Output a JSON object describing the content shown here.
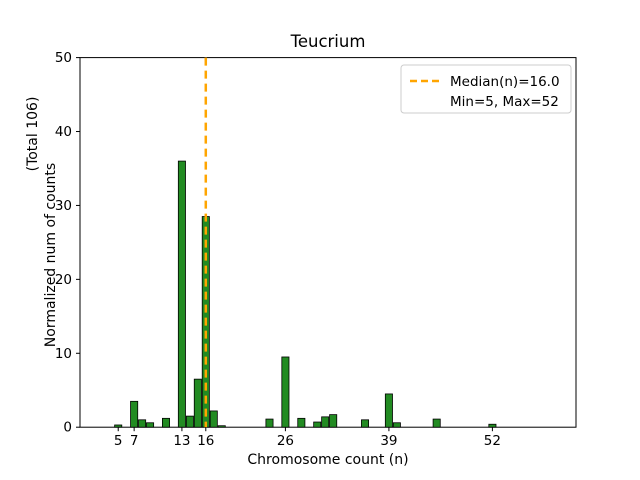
{
  "figure": {
    "title": "Teucrium",
    "xlabel": "Chromosome count (n)",
    "ylabel_line1": "Normalized num of counts",
    "ylabel_line2": "(Total 106)",
    "legend": {
      "median_label": "Median(n)=16.0",
      "minmax_label": "Min=5, Max=52"
    }
  },
  "chart_data": {
    "type": "bar",
    "title": "Teucrium",
    "xlabel": "Chromosome count (n)",
    "ylabel": "Normalized num of counts (Total 106)",
    "xlim": [
      0.2,
      62.5
    ],
    "ylim": [
      0,
      50
    ],
    "xticks": [
      5,
      7,
      13,
      16,
      26,
      39,
      52
    ],
    "yticks": [
      0,
      10,
      20,
      30,
      40,
      50
    ],
    "bar_width": 0.9,
    "bars": [
      {
        "x": 5,
        "y": 0.3
      },
      {
        "x": 7,
        "y": 3.5
      },
      {
        "x": 8,
        "y": 1.0
      },
      {
        "x": 9,
        "y": 0.6
      },
      {
        "x": 11,
        "y": 1.2
      },
      {
        "x": 13,
        "y": 36.0
      },
      {
        "x": 14,
        "y": 1.5
      },
      {
        "x": 15,
        "y": 6.5
      },
      {
        "x": 16,
        "y": 28.5
      },
      {
        "x": 17,
        "y": 2.2
      },
      {
        "x": 18,
        "y": 0.2
      },
      {
        "x": 24,
        "y": 1.1
      },
      {
        "x": 26,
        "y": 9.5
      },
      {
        "x": 28,
        "y": 1.2
      },
      {
        "x": 30,
        "y": 0.7
      },
      {
        "x": 31,
        "y": 1.4
      },
      {
        "x": 32,
        "y": 1.7
      },
      {
        "x": 36,
        "y": 1.0
      },
      {
        "x": 39,
        "y": 4.5
      },
      {
        "x": 40,
        "y": 0.6
      },
      {
        "x": 45,
        "y": 1.1
      },
      {
        "x": 52,
        "y": 0.4
      }
    ],
    "median_line": {
      "x": 16,
      "value": 16.0
    },
    "stats": {
      "min": 5,
      "max": 52,
      "total": 106
    },
    "colors": {
      "bar_fill": "#228B22",
      "bar_edge": "#000000",
      "median_line": "#FFA500",
      "legend_border": "#cccccc"
    },
    "legend_position": "upper right",
    "grid": false
  }
}
